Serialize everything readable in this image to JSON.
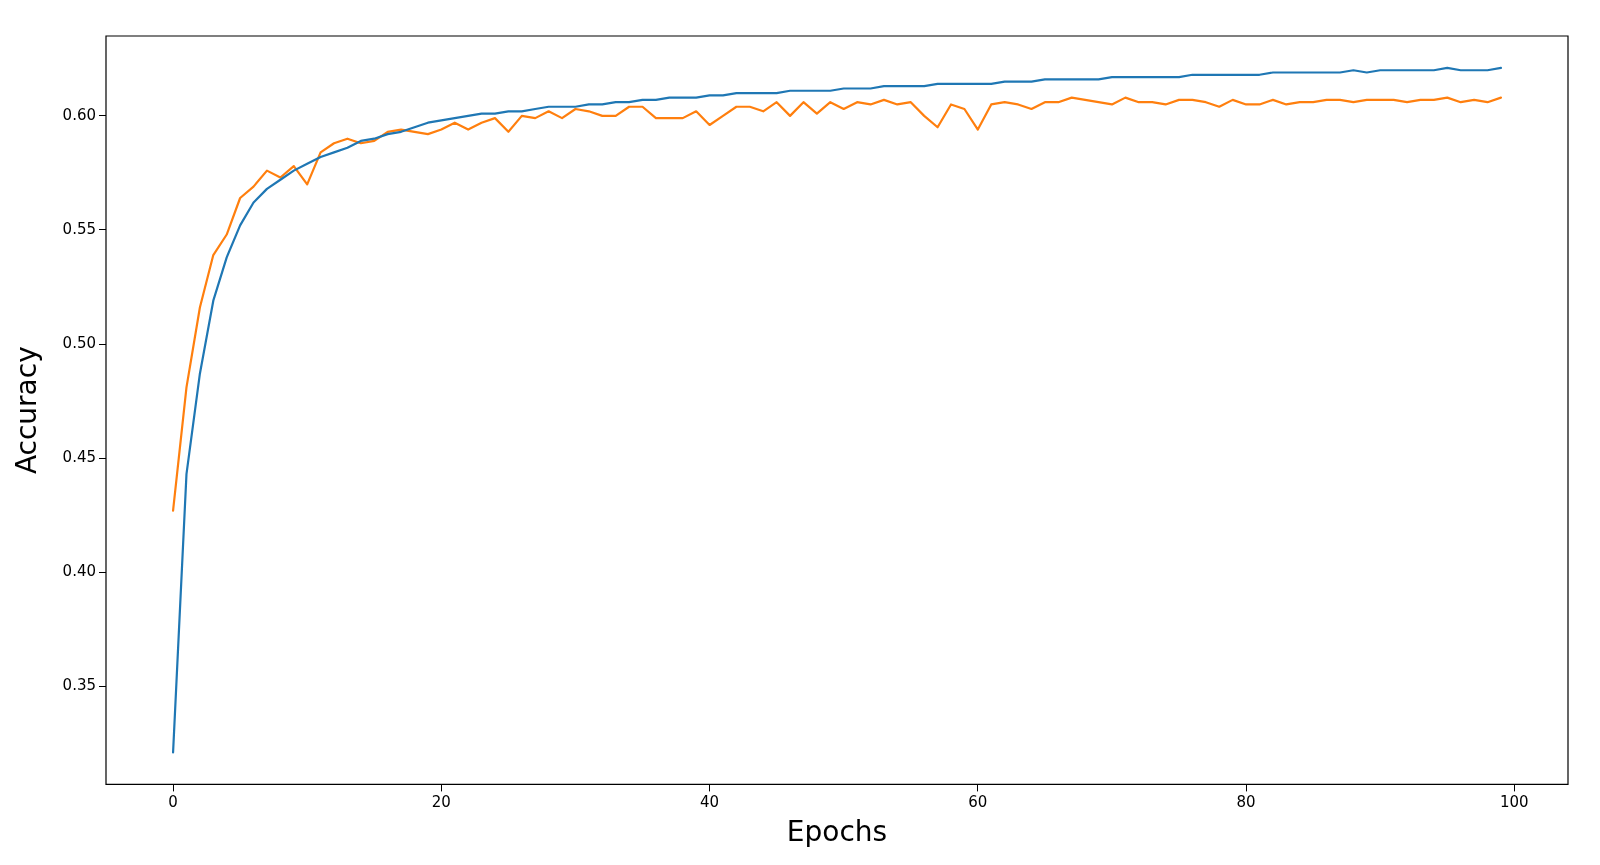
{
  "chart_data": {
    "type": "line",
    "xlabel": "Epochs",
    "ylabel": "Accuracy",
    "x": [
      0,
      1,
      2,
      3,
      4,
      5,
      6,
      7,
      8,
      9,
      10,
      11,
      12,
      13,
      14,
      15,
      16,
      17,
      18,
      19,
      20,
      21,
      22,
      23,
      24,
      25,
      26,
      27,
      28,
      29,
      30,
      31,
      32,
      33,
      34,
      35,
      36,
      37,
      38,
      39,
      40,
      41,
      42,
      43,
      44,
      45,
      46,
      47,
      48,
      49,
      50,
      51,
      52,
      53,
      54,
      55,
      56,
      57,
      58,
      59,
      60,
      61,
      62,
      63,
      64,
      65,
      66,
      67,
      68,
      69,
      70,
      71,
      72,
      73,
      74,
      75,
      76,
      77,
      78,
      79,
      80,
      81,
      82,
      83,
      84,
      85,
      86,
      87,
      88,
      89,
      90,
      91,
      92,
      93,
      94,
      95,
      96,
      97,
      98,
      99
    ],
    "series": [
      {
        "color": "#1f77b4",
        "values": [
          0.321,
          0.443,
          0.487,
          0.519,
          0.538,
          0.552,
          0.562,
          0.568,
          0.572,
          0.576,
          0.579,
          0.582,
          0.584,
          0.586,
          0.589,
          0.59,
          0.592,
          0.593,
          0.595,
          0.597,
          0.598,
          0.599,
          0.6,
          0.601,
          0.601,
          0.602,
          0.602,
          0.603,
          0.604,
          0.604,
          0.604,
          0.605,
          0.605,
          0.606,
          0.606,
          0.607,
          0.607,
          0.608,
          0.608,
          0.608,
          0.609,
          0.609,
          0.61,
          0.61,
          0.61,
          0.61,
          0.611,
          0.611,
          0.611,
          0.611,
          0.612,
          0.612,
          0.612,
          0.613,
          0.613,
          0.613,
          0.613,
          0.614,
          0.614,
          0.614,
          0.614,
          0.614,
          0.615,
          0.615,
          0.615,
          0.616,
          0.616,
          0.616,
          0.616,
          0.616,
          0.617,
          0.617,
          0.617,
          0.617,
          0.617,
          0.617,
          0.618,
          0.618,
          0.618,
          0.618,
          0.618,
          0.618,
          0.619,
          0.619,
          0.619,
          0.619,
          0.619,
          0.619,
          0.62,
          0.619,
          0.62,
          0.62,
          0.62,
          0.62,
          0.62,
          0.621,
          0.62,
          0.62,
          0.62,
          0.621
        ]
      },
      {
        "color": "#ff7f0e",
        "values": [
          0.427,
          0.481,
          0.516,
          0.539,
          0.548,
          0.564,
          0.569,
          0.576,
          0.573,
          0.578,
          0.57,
          0.584,
          0.588,
          0.59,
          0.588,
          0.589,
          0.593,
          0.594,
          0.593,
          0.592,
          0.594,
          0.597,
          0.594,
          0.597,
          0.599,
          0.593,
          0.6,
          0.599,
          0.602,
          0.599,
          0.603,
          0.602,
          0.6,
          0.6,
          0.604,
          0.604,
          0.599,
          0.599,
          0.599,
          0.602,
          0.596,
          0.6,
          0.604,
          0.604,
          0.602,
          0.606,
          0.6,
          0.606,
          0.601,
          0.606,
          0.603,
          0.606,
          0.605,
          0.607,
          0.605,
          0.606,
          0.6,
          0.595,
          0.605,
          0.603,
          0.594,
          0.605,
          0.606,
          0.605,
          0.603,
          0.606,
          0.606,
          0.608,
          0.607,
          0.606,
          0.605,
          0.608,
          0.606,
          0.606,
          0.605,
          0.607,
          0.607,
          0.606,
          0.604,
          0.607,
          0.605,
          0.605,
          0.607,
          0.605,
          0.606,
          0.606,
          0.607,
          0.607,
          0.606,
          0.607,
          0.607,
          0.607,
          0.606,
          0.607,
          0.607,
          0.608,
          0.606,
          0.607,
          0.606,
          0.608
        ]
      }
    ],
    "xlim": [
      -5,
      104
    ],
    "xticks": [
      0,
      20,
      40,
      60,
      80,
      100
    ],
    "ylim": [
      0.307,
      0.635
    ],
    "yticks": [
      {
        "value": 0.35,
        "label": "0.35"
      },
      {
        "value": 0.4,
        "label": "0.40"
      },
      {
        "value": 0.45,
        "label": "0.45"
      },
      {
        "value": 0.5,
        "label": "0.50"
      },
      {
        "value": 0.55,
        "label": "0.55"
      },
      {
        "value": 0.6,
        "label": "0.60"
      }
    ],
    "grid": false,
    "legend": false,
    "marker": "none",
    "line_style": "solid"
  }
}
